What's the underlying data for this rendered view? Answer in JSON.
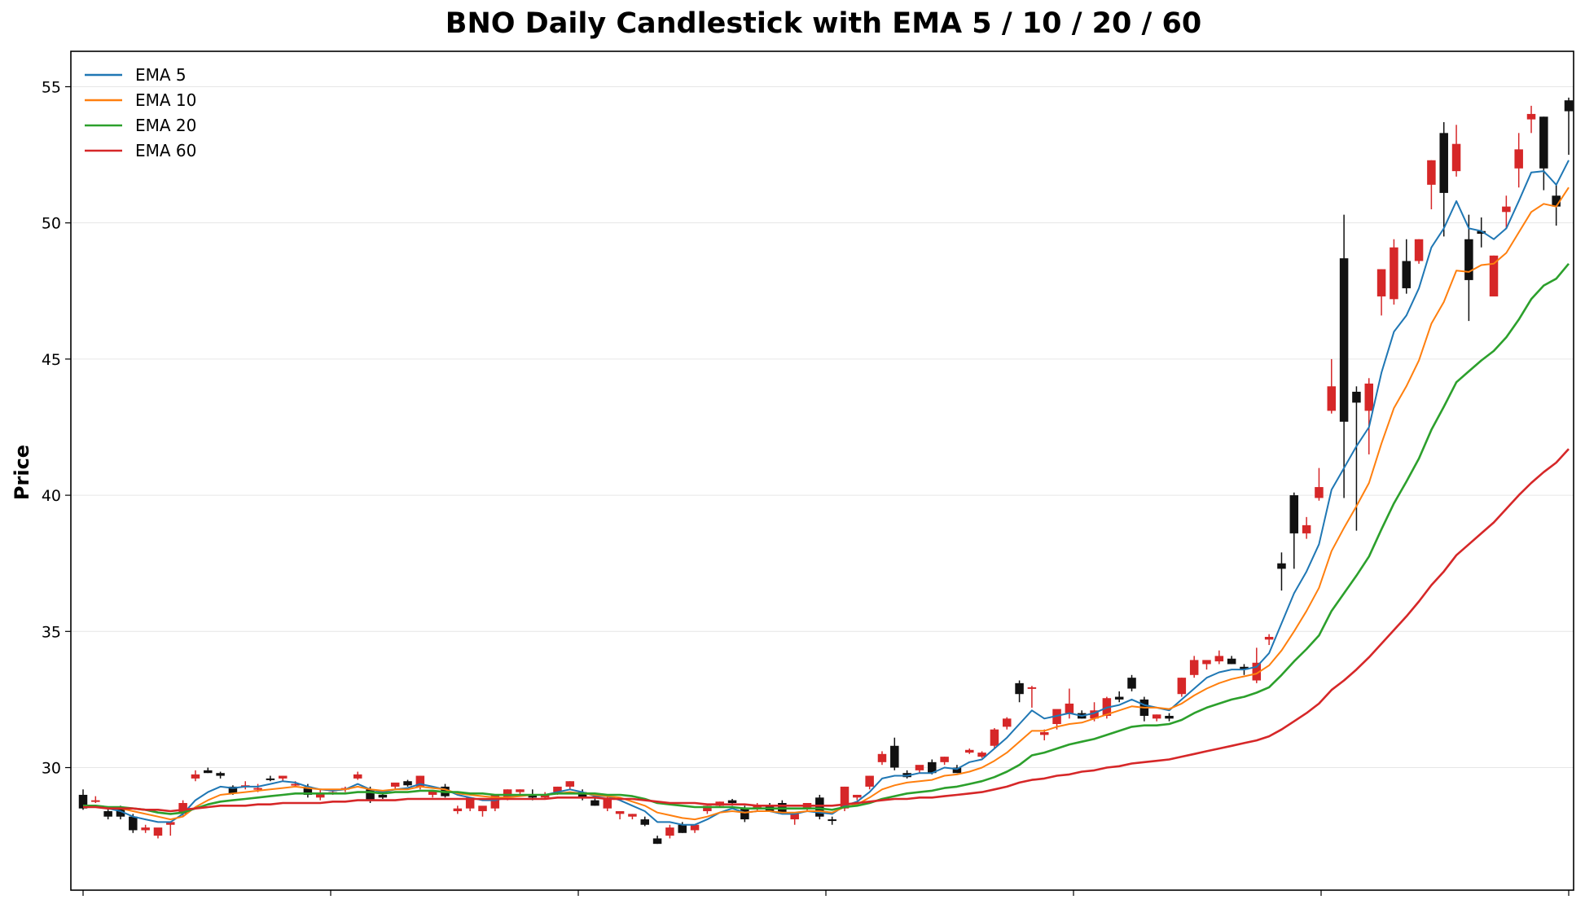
{
  "chart_data": {
    "type": "candlestick",
    "title": "BNO Daily Candlestick with EMA 5 / 10 / 20 / 60",
    "xlabel": "",
    "ylabel": "Price",
    "ylim": [
      25.5,
      56.3
    ],
    "y_ticks": [
      30,
      35,
      40,
      45,
      50,
      55
    ],
    "x_tick_count": 7,
    "grid": "horizontal",
    "legend_position": "top-left",
    "colors": {
      "up": "#d62728",
      "down": "#111111"
    },
    "series": [
      {
        "name": "EMA 5",
        "color": "#1f77b4"
      },
      {
        "name": "EMA 10",
        "color": "#ff7f0e"
      },
      {
        "name": "EMA 20",
        "color": "#2ca02c"
      },
      {
        "name": "EMA 60",
        "color": "#d62728"
      }
    ],
    "candles": [
      [
        29.0,
        29.2,
        28.45,
        28.5
      ],
      [
        28.8,
        28.95,
        28.7,
        28.8
      ],
      [
        28.4,
        28.5,
        28.1,
        28.2
      ],
      [
        28.5,
        28.6,
        28.1,
        28.2
      ],
      [
        28.2,
        28.3,
        27.6,
        27.7
      ],
      [
        27.7,
        27.9,
        27.6,
        27.8
      ],
      [
        27.5,
        27.6,
        27.4,
        27.8
      ],
      [
        27.9,
        28.0,
        27.5,
        28.0
      ],
      [
        28.3,
        28.8,
        28.2,
        28.7
      ],
      [
        29.6,
        29.9,
        29.5,
        29.75
      ],
      [
        29.9,
        30.0,
        29.8,
        29.8
      ],
      [
        29.8,
        29.85,
        29.6,
        29.7
      ],
      [
        29.3,
        29.35,
        29.0,
        29.05
      ],
      [
        29.3,
        29.5,
        29.2,
        29.35
      ],
      [
        29.2,
        29.4,
        29.1,
        29.25
      ],
      [
        29.6,
        29.7,
        29.5,
        29.55
      ],
      [
        29.6,
        29.7,
        29.5,
        29.7
      ],
      [
        29.4,
        29.5,
        29.3,
        29.4
      ],
      [
        29.3,
        29.4,
        28.9,
        29.0
      ],
      [
        28.9,
        29.2,
        28.8,
        29.05
      ],
      [
        29.1,
        29.2,
        29.0,
        29.1
      ],
      [
        29.2,
        29.3,
        29.1,
        29.25
      ],
      [
        29.6,
        29.85,
        29.55,
        29.75
      ],
      [
        29.2,
        29.3,
        28.7,
        28.8
      ],
      [
        29.0,
        29.1,
        28.85,
        28.9
      ],
      [
        29.3,
        29.4,
        29.2,
        29.45
      ],
      [
        29.5,
        29.55,
        29.3,
        29.35
      ],
      [
        29.3,
        29.7,
        29.2,
        29.7
      ],
      [
        29.0,
        29.1,
        28.9,
        29.15
      ],
      [
        29.3,
        29.4,
        28.9,
        28.95
      ],
      [
        28.4,
        28.6,
        28.3,
        28.5
      ],
      [
        28.5,
        28.9,
        28.4,
        28.9
      ],
      [
        28.4,
        28.5,
        28.2,
        28.6
      ],
      [
        28.5,
        28.7,
        28.4,
        29.0
      ],
      [
        28.9,
        29.2,
        28.8,
        29.2
      ],
      [
        29.1,
        29.2,
        29.0,
        29.2
      ],
      [
        29.0,
        29.2,
        28.8,
        28.9
      ],
      [
        28.9,
        29.1,
        28.85,
        29.0
      ],
      [
        29.1,
        29.3,
        29.0,
        29.3
      ],
      [
        29.3,
        29.5,
        29.2,
        29.5
      ],
      [
        29.1,
        29.2,
        28.8,
        28.9
      ],
      [
        28.8,
        28.9,
        28.6,
        28.6
      ],
      [
        28.5,
        29.0,
        28.4,
        28.9
      ],
      [
        28.3,
        28.4,
        28.1,
        28.4
      ],
      [
        28.2,
        28.3,
        28.1,
        28.3
      ],
      [
        28.1,
        28.2,
        27.85,
        27.9
      ],
      [
        27.4,
        27.5,
        27.2,
        27.2
      ],
      [
        27.5,
        27.9,
        27.4,
        27.8
      ],
      [
        27.9,
        28.0,
        27.6,
        27.6
      ],
      [
        27.7,
        27.9,
        27.6,
        27.9
      ],
      [
        28.4,
        28.6,
        28.3,
        28.6
      ],
      [
        28.6,
        28.75,
        28.55,
        28.75
      ],
      [
        28.8,
        28.85,
        28.6,
        28.7
      ],
      [
        28.5,
        28.6,
        28.0,
        28.1
      ],
      [
        28.5,
        28.7,
        28.4,
        28.6
      ],
      [
        28.6,
        28.7,
        28.4,
        28.4
      ],
      [
        28.7,
        28.8,
        28.5,
        28.3
      ],
      [
        28.1,
        28.2,
        27.9,
        28.3
      ],
      [
        28.5,
        28.6,
        28.4,
        28.7
      ],
      [
        28.9,
        29.0,
        28.1,
        28.2
      ],
      [
        28.1,
        28.2,
        27.9,
        28.05
      ],
      [
        28.5,
        29.3,
        28.4,
        29.3
      ],
      [
        28.9,
        29.0,
        28.8,
        29.0
      ],
      [
        29.3,
        29.7,
        29.2,
        29.7
      ],
      [
        30.2,
        30.6,
        30.1,
        30.5
      ],
      [
        30.8,
        31.1,
        29.9,
        30.0
      ],
      [
        29.8,
        29.9,
        29.6,
        29.65
      ],
      [
        29.9,
        30.0,
        29.8,
        30.1
      ],
      [
        30.2,
        30.3,
        29.75,
        29.8
      ],
      [
        30.2,
        30.4,
        30.1,
        30.4
      ],
      [
        30.0,
        30.1,
        29.8,
        29.8
      ],
      [
        30.55,
        30.7,
        30.5,
        30.65
      ],
      [
        30.4,
        30.6,
        30.35,
        30.55
      ],
      [
        30.8,
        31.45,
        30.7,
        31.4
      ],
      [
        31.5,
        31.85,
        31.4,
        31.8
      ],
      [
        33.1,
        33.2,
        32.4,
        32.7
      ],
      [
        32.9,
        33.0,
        32.2,
        32.95
      ],
      [
        31.2,
        31.4,
        31.0,
        31.3
      ],
      [
        31.6,
        32.1,
        31.4,
        32.15
      ],
      [
        32.0,
        32.9,
        31.8,
        32.35
      ],
      [
        32.0,
        32.1,
        31.8,
        31.8
      ],
      [
        31.8,
        32.4,
        31.7,
        32.1
      ],
      [
        31.9,
        32.6,
        31.8,
        32.55
      ],
      [
        32.6,
        32.8,
        32.4,
        32.5
      ],
      [
        33.3,
        33.4,
        32.8,
        32.9
      ],
      [
        32.5,
        32.6,
        31.7,
        31.9
      ],
      [
        31.8,
        31.95,
        31.7,
        31.95
      ],
      [
        31.9,
        32.0,
        31.7,
        31.8
      ],
      [
        32.7,
        33.3,
        32.6,
        33.3
      ],
      [
        33.4,
        34.1,
        33.3,
        33.95
      ],
      [
        33.8,
        33.9,
        33.6,
        33.95
      ],
      [
        33.9,
        34.3,
        33.8,
        34.1
      ],
      [
        34.0,
        34.1,
        33.8,
        33.8
      ],
      [
        33.7,
        33.8,
        33.4,
        33.6
      ],
      [
        33.2,
        34.4,
        33.1,
        33.85
      ],
      [
        34.7,
        34.9,
        34.5,
        34.8
      ],
      [
        37.5,
        37.9,
        36.5,
        37.3
      ],
      [
        40.0,
        40.1,
        37.3,
        38.6
      ],
      [
        38.6,
        39.2,
        38.4,
        38.9
      ],
      [
        39.9,
        41.0,
        39.8,
        40.3
      ],
      [
        43.1,
        45.0,
        43.0,
        44.0
      ],
      [
        48.7,
        50.3,
        39.9,
        42.7
      ],
      [
        43.8,
        44.0,
        38.7,
        43.4
      ],
      [
        43.1,
        44.3,
        41.5,
        44.1
      ],
      [
        47.3,
        48.3,
        46.6,
        48.3
      ],
      [
        47.2,
        49.4,
        47.0,
        49.1
      ],
      [
        48.6,
        49.4,
        47.4,
        47.6
      ],
      [
        48.6,
        49.4,
        48.5,
        49.4
      ],
      [
        51.4,
        52.3,
        50.5,
        52.3
      ],
      [
        53.3,
        53.7,
        49.5,
        51.1
      ],
      [
        51.9,
        53.6,
        51.7,
        52.9
      ],
      [
        49.4,
        50.3,
        46.4,
        47.9
      ],
      [
        49.7,
        50.2,
        49.1,
        49.6
      ],
      [
        47.3,
        48.8,
        47.3,
        48.8
      ],
      [
        50.4,
        51.0,
        49.8,
        50.6
      ],
      [
        52.0,
        53.3,
        51.3,
        52.7
      ],
      [
        53.8,
        54.3,
        53.3,
        54.0
      ],
      [
        53.9,
        53.9,
        51.2,
        52.0
      ],
      [
        51.0,
        51.4,
        49.9,
        50.6
      ],
      [
        54.5,
        54.6,
        52.5,
        54.1
      ]
    ],
    "ema5": [
      28.6,
      28.6,
      28.5,
      28.4,
      28.2,
      28.1,
      28.0,
      28.0,
      28.3,
      28.8,
      29.1,
      29.3,
      29.25,
      29.3,
      29.3,
      29.4,
      29.5,
      29.45,
      29.3,
      29.2,
      29.15,
      29.2,
      29.4,
      29.2,
      29.1,
      29.2,
      29.25,
      29.4,
      29.3,
      29.2,
      29.0,
      28.9,
      28.8,
      28.8,
      28.9,
      29.0,
      29.0,
      29.0,
      29.1,
      29.2,
      29.1,
      28.95,
      28.95,
      28.8,
      28.6,
      28.4,
      28.0,
      28.0,
      27.9,
      27.9,
      28.1,
      28.35,
      28.5,
      28.35,
      28.4,
      28.4,
      28.3,
      28.3,
      28.4,
      28.35,
      28.3,
      28.6,
      28.75,
      29.1,
      29.6,
      29.7,
      29.7,
      29.8,
      29.8,
      30.0,
      29.95,
      30.2,
      30.3,
      30.7,
      31.1,
      31.6,
      32.1,
      31.8,
      31.9,
      32.0,
      31.9,
      32.0,
      32.2,
      32.3,
      32.5,
      32.3,
      32.2,
      32.1,
      32.5,
      32.9,
      33.3,
      33.5,
      33.6,
      33.6,
      33.7,
      34.2,
      35.3,
      36.4,
      37.2,
      38.2,
      40.2,
      41.0,
      41.8,
      42.5,
      44.5,
      46.0,
      46.6,
      47.6,
      49.1,
      49.8,
      50.8,
      49.8,
      49.7,
      49.4,
      49.8,
      50.8,
      51.85,
      51.9,
      51.4,
      52.3
    ],
    "ema10": [
      28.6,
      28.6,
      28.55,
      28.5,
      28.4,
      28.3,
      28.2,
      28.1,
      28.2,
      28.55,
      28.8,
      29.0,
      29.05,
      29.1,
      29.15,
      29.2,
      29.25,
      29.3,
      29.25,
      29.2,
      29.2,
      29.2,
      29.3,
      29.2,
      29.15,
      29.2,
      29.2,
      29.3,
      29.25,
      29.2,
      29.05,
      29.0,
      28.95,
      28.9,
      28.9,
      28.95,
      29.0,
      29.0,
      29.05,
      29.1,
      29.05,
      29.0,
      28.95,
      28.9,
      28.75,
      28.6,
      28.35,
      28.25,
      28.15,
      28.1,
      28.2,
      28.35,
      28.4,
      28.35,
      28.4,
      28.4,
      28.35,
      28.35,
      28.4,
      28.4,
      28.35,
      28.55,
      28.65,
      28.9,
      29.2,
      29.35,
      29.45,
      29.5,
      29.55,
      29.7,
      29.75,
      29.85,
      30.0,
      30.25,
      30.55,
      30.95,
      31.35,
      31.35,
      31.5,
      31.6,
      31.65,
      31.8,
      31.95,
      32.1,
      32.25,
      32.2,
      32.2,
      32.15,
      32.35,
      32.65,
      32.9,
      33.1,
      33.25,
      33.35,
      33.45,
      33.75,
      34.3,
      35.0,
      35.75,
      36.6,
      37.95,
      38.8,
      39.6,
      40.45,
      41.9,
      43.2,
      44.0,
      44.95,
      46.3,
      47.1,
      48.25,
      48.2,
      48.45,
      48.5,
      48.9,
      49.65,
      50.4,
      50.7,
      50.6,
      51.3
    ],
    "ema20": [
      28.6,
      28.6,
      28.55,
      28.55,
      28.5,
      28.45,
      28.35,
      28.3,
      28.35,
      28.5,
      28.65,
      28.75,
      28.8,
      28.85,
      28.9,
      28.95,
      29.0,
      29.05,
      29.05,
      29.05,
      29.05,
      29.05,
      29.1,
      29.1,
      29.05,
      29.1,
      29.1,
      29.15,
      29.15,
      29.1,
      29.1,
      29.05,
      29.05,
      29.0,
      29.0,
      29.0,
      29.0,
      29.0,
      29.05,
      29.05,
      29.05,
      29.05,
      29.0,
      29.0,
      28.95,
      28.85,
      28.7,
      28.65,
      28.6,
      28.55,
      28.55,
      28.55,
      28.55,
      28.5,
      28.5,
      28.5,
      28.5,
      28.5,
      28.5,
      28.5,
      28.45,
      28.55,
      28.6,
      28.7,
      28.85,
      28.95,
      29.05,
      29.1,
      29.15,
      29.25,
      29.3,
      29.4,
      29.5,
      29.65,
      29.85,
      30.1,
      30.45,
      30.55,
      30.7,
      30.85,
      30.95,
      31.05,
      31.2,
      31.35,
      31.5,
      31.55,
      31.55,
      31.6,
      31.75,
      32.0,
      32.2,
      32.35,
      32.5,
      32.6,
      32.75,
      32.95,
      33.4,
      33.9,
      34.35,
      34.85,
      35.75,
      36.4,
      37.05,
      37.75,
      38.75,
      39.7,
      40.5,
      41.35,
      42.4,
      43.25,
      44.15,
      44.55,
      44.95,
      45.3,
      45.8,
      46.45,
      47.2,
      47.7,
      47.95,
      48.5
    ],
    "ema60": [
      28.55,
      28.55,
      28.5,
      28.5,
      28.5,
      28.45,
      28.45,
      28.4,
      28.45,
      28.5,
      28.55,
      28.6,
      28.6,
      28.6,
      28.65,
      28.65,
      28.7,
      28.7,
      28.7,
      28.7,
      28.75,
      28.75,
      28.8,
      28.8,
      28.8,
      28.8,
      28.85,
      28.85,
      28.85,
      28.85,
      28.85,
      28.85,
      28.85,
      28.85,
      28.85,
      28.85,
      28.85,
      28.85,
      28.9,
      28.9,
      28.9,
      28.9,
      28.85,
      28.85,
      28.85,
      28.8,
      28.75,
      28.7,
      28.7,
      28.7,
      28.65,
      28.65,
      28.65,
      28.65,
      28.6,
      28.6,
      28.6,
      28.6,
      28.6,
      28.6,
      28.6,
      28.65,
      28.7,
      28.75,
      28.8,
      28.85,
      28.85,
      28.9,
      28.9,
      28.95,
      29.0,
      29.05,
      29.1,
      29.2,
      29.3,
      29.45,
      29.55,
      29.6,
      29.7,
      29.75,
      29.85,
      29.9,
      30.0,
      30.05,
      30.15,
      30.2,
      30.25,
      30.3,
      30.4,
      30.5,
      30.6,
      30.7,
      30.8,
      30.9,
      31.0,
      31.15,
      31.4,
      31.7,
      32.0,
      32.35,
      32.85,
      33.2,
      33.6,
      34.05,
      34.55,
      35.05,
      35.55,
      36.1,
      36.7,
      37.2,
      37.8,
      38.2,
      38.6,
      39.0,
      39.5,
      40.0,
      40.45,
      40.85,
      41.2,
      41.7
    ]
  }
}
